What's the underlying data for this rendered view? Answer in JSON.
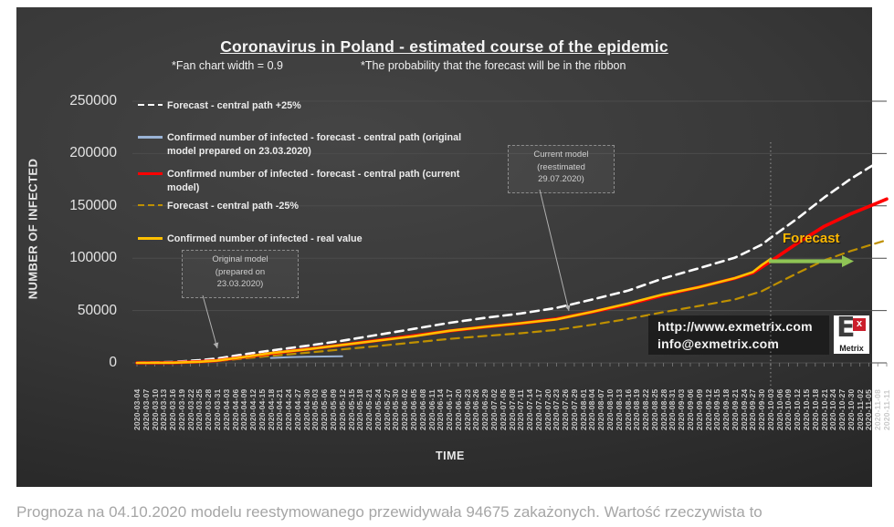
{
  "page": {
    "bottom_caption": "Prognoza na 04.10.2020 modelu reestymowanego przewidywała 94675 zakażonych. Wartość rzeczywista to"
  },
  "chart": {
    "title": "Coronavirus in Poland - estimated course of the epidemic",
    "subtitle_left": "*Fan chart width = 0.9",
    "subtitle_right": "*The probability that the forecast will be in the ribbon",
    "y_axis_title": "NUMBER OF INFECTED",
    "x_axis_title": "TIME"
  },
  "legend": [
    {
      "label": "Forecast - central path +25%",
      "color": "#ffffff",
      "dashed": true
    },
    {
      "label": "Confirmed number of infected - forecast - central path (original\nmodel prepared on 23.03.2020)",
      "color": "#9ab3d5",
      "dashed": false
    },
    {
      "label": "Confirmed number of infected - forecast - central path (current\nmodel)",
      "color": "#ff0000",
      "dashed": false
    },
    {
      "label": "Forecast - central path  -25%",
      "color": "#bf9000",
      "dashed": true
    },
    {
      "label": "Confirmed number of infected - real value",
      "color": "#ffc000",
      "dashed": false
    }
  ],
  "annotations": {
    "original_model": "Original model\n(prepared on\n23.03.2020)",
    "current_model": "Current model\n(reestimated\n29.07.2020)"
  },
  "forecast": {
    "label": "Forecast",
    "arrow_color": "#8fc455",
    "label_color": "#ffb900"
  },
  "watermark": {
    "url": "http://www.exmetrix.com",
    "email": "info@exmetrix.com",
    "logo_e": "E",
    "logo_x": "x",
    "logo_metrix": "Metrix"
  },
  "chart_data": {
    "type": "line",
    "title": "Coronavirus in Poland - estimated course of the epidemic",
    "xlabel": "TIME",
    "ylabel": "NUMBER OF INFECTED",
    "ylim": [
      0,
      250000
    ],
    "grid": true,
    "legend_position": "top-left",
    "forecast_start": "2020-10-03",
    "y_ticks": [
      0,
      50000,
      100000,
      150000,
      200000,
      250000
    ],
    "x_tick_labels": [
      "2020-03-04",
      "2020-03-07",
      "2020-03-10",
      "2020-03-13",
      "2020-03-16",
      "2020-03-19",
      "2020-03-22",
      "2020-03-25",
      "2020-03-28",
      "2020-03-31",
      "2020-04-03",
      "2020-04-06",
      "2020-04-09",
      "2020-04-12",
      "2020-04-15",
      "2020-04-18",
      "2020-04-21",
      "2020-04-24",
      "2020-04-27",
      "2020-04-30",
      "2020-05-03",
      "2020-05-06",
      "2020-05-09",
      "2020-05-12",
      "2020-05-15",
      "2020-05-18",
      "2020-05-21",
      "2020-05-24",
      "2020-05-27",
      "2020-05-30",
      "2020-06-02",
      "2020-06-05",
      "2020-06-08",
      "2020-06-11",
      "2020-06-14",
      "2020-06-17",
      "2020-06-20",
      "2020-06-23",
      "2020-06-26",
      "2020-06-29",
      "2020-07-02",
      "2020-07-05",
      "2020-07-08",
      "2020-07-11",
      "2020-07-14",
      "2020-07-17",
      "2020-07-20",
      "2020-07-23",
      "2020-07-26",
      "2020-07-29",
      "2020-08-01",
      "2020-08-04",
      "2020-08-07",
      "2020-08-10",
      "2020-08-13",
      "2020-08-16",
      "2020-08-19",
      "2020-08-22",
      "2020-08-25",
      "2020-08-28",
      "2020-08-31",
      "2020-09-03",
      "2020-09-06",
      "2020-09-09",
      "2020-09-12",
      "2020-09-15",
      "2020-09-18",
      "2020-09-21",
      "2020-09-24",
      "2020-09-27",
      "2020-09-30",
      "2020-10-03",
      "2020-10-06",
      "2020-10-09",
      "2020-10-12",
      "2020-10-15",
      "2020-10-18",
      "2020-10-21",
      "2020-10-24",
      "2020-10-27",
      "2020-10-30",
      "2020-11-02",
      "2020-11-05",
      "2020-11-08",
      "2020-11-11"
    ],
    "series": [
      {
        "id": "forecast-plus-25",
        "name": "Forecast - central path +25%",
        "color": "#ffffff",
        "dashed": true,
        "width": 2.6,
        "points": [
          [
            "2020-03-04",
            200
          ],
          [
            "2020-03-16",
            900
          ],
          [
            "2020-03-25",
            2600
          ],
          [
            "2020-03-31",
            4200
          ],
          [
            "2020-04-09",
            8200
          ],
          [
            "2020-04-18",
            11800
          ],
          [
            "2020-04-30",
            16300
          ],
          [
            "2020-05-12",
            21200
          ],
          [
            "2020-05-24",
            26800
          ],
          [
            "2020-06-05",
            32500
          ],
          [
            "2020-06-17",
            38200
          ],
          [
            "2020-06-29",
            43000
          ],
          [
            "2020-07-11",
            47200
          ],
          [
            "2020-07-23",
            52500
          ],
          [
            "2020-08-04",
            60500
          ],
          [
            "2020-08-16",
            69000
          ],
          [
            "2020-08-28",
            80800
          ],
          [
            "2020-09-09",
            90500
          ],
          [
            "2020-09-21",
            100500
          ],
          [
            "2020-09-30",
            113000
          ],
          [
            "2020-10-03",
            119500
          ],
          [
            "2020-10-12",
            138000
          ],
          [
            "2020-10-21",
            158000
          ],
          [
            "2020-10-30",
            176000
          ],
          [
            "2020-11-05",
            186500
          ],
          [
            "2020-11-11",
            196500
          ]
        ]
      },
      {
        "id": "original-model",
        "name": "Confirmed number of infected - forecast - central path (original model prepared on 23.03.2020)",
        "color": "#9ab3d5",
        "dashed": false,
        "width": 2,
        "points": [
          [
            "2020-04-18",
            4700
          ],
          [
            "2020-04-24",
            5400
          ],
          [
            "2020-04-30",
            5800
          ],
          [
            "2020-05-06",
            6100
          ],
          [
            "2020-05-12",
            6300
          ]
        ]
      },
      {
        "id": "forecast-minus-25",
        "name": "Forecast - central path  -25%",
        "color": "#bf9000",
        "dashed": true,
        "width": 2.2,
        "points": [
          [
            "2020-03-04",
            0
          ],
          [
            "2020-03-16",
            130
          ],
          [
            "2020-03-25",
            800
          ],
          [
            "2020-03-31",
            1700
          ],
          [
            "2020-04-09",
            4200
          ],
          [
            "2020-04-18",
            6700
          ],
          [
            "2020-04-30",
            9700
          ],
          [
            "2020-05-12",
            12900
          ],
          [
            "2020-05-24",
            16100
          ],
          [
            "2020-06-05",
            19500
          ],
          [
            "2020-06-17",
            22900
          ],
          [
            "2020-06-29",
            25700
          ],
          [
            "2020-07-11",
            28300
          ],
          [
            "2020-07-23",
            31500
          ],
          [
            "2020-08-04",
            36400
          ],
          [
            "2020-08-16",
            42000
          ],
          [
            "2020-08-28",
            48500
          ],
          [
            "2020-09-09",
            54400
          ],
          [
            "2020-09-21",
            60600
          ],
          [
            "2020-09-30",
            68500
          ],
          [
            "2020-10-03",
            72800
          ],
          [
            "2020-10-12",
            85800
          ],
          [
            "2020-10-21",
            98000
          ],
          [
            "2020-10-30",
            107000
          ],
          [
            "2020-11-05",
            112200
          ],
          [
            "2020-11-11",
            117300
          ]
        ]
      },
      {
        "id": "current-model",
        "name": "Confirmed number of infected - forecast - central path (current model)",
        "color": "#ff0000",
        "dashed": false,
        "width": 3.6,
        "points": [
          [
            "2020-03-04",
            30
          ],
          [
            "2020-03-16",
            180
          ],
          [
            "2020-03-25",
            1100
          ],
          [
            "2020-03-31",
            2300
          ],
          [
            "2020-04-09",
            5600
          ],
          [
            "2020-04-18",
            9000
          ],
          [
            "2020-04-30",
            13000
          ],
          [
            "2020-05-12",
            17200
          ],
          [
            "2020-05-24",
            21500
          ],
          [
            "2020-06-05",
            26000
          ],
          [
            "2020-06-17",
            30500
          ],
          [
            "2020-06-29",
            34300
          ],
          [
            "2020-07-11",
            37700
          ],
          [
            "2020-07-23",
            42000
          ],
          [
            "2020-08-04",
            48600
          ],
          [
            "2020-08-16",
            56000
          ],
          [
            "2020-08-28",
            64700
          ],
          [
            "2020-09-09",
            72500
          ],
          [
            "2020-09-21",
            80800
          ],
          [
            "2020-09-27",
            86000
          ],
          [
            "2020-09-30",
            91500
          ],
          [
            "2020-10-03",
            97000
          ],
          [
            "2020-10-12",
            114500
          ],
          [
            "2020-10-21",
            130500
          ],
          [
            "2020-10-30",
            142500
          ],
          [
            "2020-11-05",
            149500
          ],
          [
            "2020-11-11",
            156500
          ]
        ]
      },
      {
        "id": "real-value",
        "name": "Confirmed number of infected - real value",
        "color": "#ffc000",
        "dashed": false,
        "width": 2.6,
        "points": [
          [
            "2020-03-04",
            1
          ],
          [
            "2020-03-16",
            180
          ],
          [
            "2020-03-25",
            1050
          ],
          [
            "2020-03-31",
            2300
          ],
          [
            "2020-04-09",
            5600
          ],
          [
            "2020-04-18",
            9300
          ],
          [
            "2020-04-30",
            12900
          ],
          [
            "2020-05-12",
            17200
          ],
          [
            "2020-05-24",
            21300
          ],
          [
            "2020-06-05",
            25400
          ],
          [
            "2020-06-17",
            30700
          ],
          [
            "2020-06-29",
            34400
          ],
          [
            "2020-07-11",
            37900
          ],
          [
            "2020-07-23",
            41600
          ],
          [
            "2020-08-04",
            48800
          ],
          [
            "2020-08-16",
            56700
          ],
          [
            "2020-08-28",
            65500
          ],
          [
            "2020-09-09",
            72400
          ],
          [
            "2020-09-21",
            81000
          ],
          [
            "2020-09-27",
            86800
          ],
          [
            "2020-09-30",
            93500
          ],
          [
            "2020-10-03",
            99200
          ]
        ]
      }
    ]
  }
}
